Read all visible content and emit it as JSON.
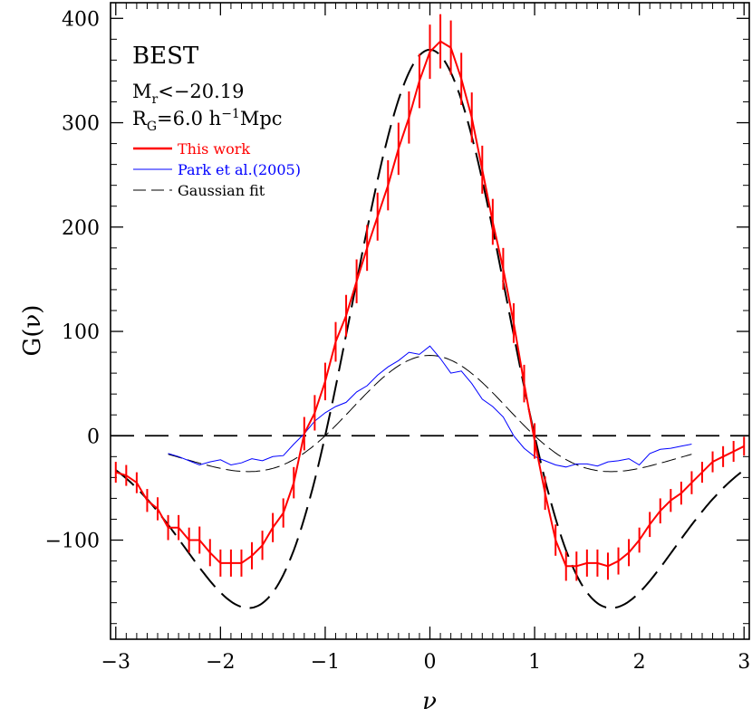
{
  "chart_data": {
    "type": "line",
    "title": "",
    "xlabel": "ν",
    "ylabel": "G(ν)",
    "xlim": [
      -3.05,
      3.05
    ],
    "ylim": [
      -195,
      415
    ],
    "x_ticks": [
      -3,
      -2,
      -1,
      0,
      1,
      2,
      3
    ],
    "x_tick_labels": [
      "−3",
      "−2",
      "−1",
      "0",
      "1",
      "2",
      "3"
    ],
    "y_ticks": [
      -100,
      0,
      100,
      200,
      300,
      400
    ],
    "y_tick_labels": [
      "−100",
      "0",
      "100",
      "200",
      "300",
      "400"
    ],
    "annotations": {
      "sample": "BEST",
      "mag_M": "M",
      "mag_sub": "r",
      "mag_rest": "<−20.19",
      "rg_R": "R",
      "rg_sub": "G",
      "rg_rest": "=6.0 h",
      "rg_sup": "−1",
      "rg_unit": "Mpc"
    },
    "legend": {
      "position": "top-left",
      "entries": [
        {
          "label": "This work",
          "color": "#ff0000",
          "style": "solid-thick"
        },
        {
          "label": "Park et al.(2005)",
          "color": "#0000ff",
          "style": "solid-thin"
        },
        {
          "label": "Gaussian fit",
          "color": "#000000",
          "style": "dashed-thin"
        }
      ]
    },
    "zero_line": {
      "y": 0,
      "style": "long-dash"
    },
    "series": [
      {
        "name": "This work",
        "color": "#ff0000",
        "x": [
          -3.0,
          -2.9,
          -2.8,
          -2.7,
          -2.6,
          -2.5,
          -2.4,
          -2.3,
          -2.2,
          -2.1,
          -2.0,
          -1.9,
          -1.8,
          -1.7,
          -1.6,
          -1.5,
          -1.4,
          -1.3,
          -1.2,
          -1.1,
          -1.0,
          -0.9,
          -0.8,
          -0.7,
          -0.6,
          -0.5,
          -0.4,
          -0.3,
          -0.2,
          -0.1,
          0.0,
          0.1,
          0.2,
          0.3,
          0.4,
          0.5,
          0.6,
          0.7,
          0.8,
          0.9,
          1.0,
          1.1,
          1.2,
          1.3,
          1.4,
          1.5,
          1.6,
          1.7,
          1.8,
          1.9,
          2.0,
          2.1,
          2.2,
          2.3,
          2.4,
          2.5,
          2.6,
          2.7,
          2.8,
          2.9,
          3.0
        ],
        "y": [
          -35,
          -38,
          -45,
          -62,
          -70,
          -88,
          -88,
          -100,
          -100,
          -112,
          -122,
          -122,
          -122,
          -115,
          -105,
          -88,
          -74,
          -45,
          2,
          22,
          52,
          90,
          115,
          148,
          180,
          210,
          240,
          275,
          305,
          340,
          368,
          378,
          372,
          342,
          305,
          255,
          205,
          160,
          108,
          50,
          -5,
          -55,
          -100,
          -125,
          -125,
          -122,
          -122,
          -125,
          -120,
          -112,
          -100,
          -85,
          -72,
          -62,
          -55,
          -45,
          -35,
          -25,
          -20,
          -15,
          -10
        ],
        "err": [
          10,
          10,
          10,
          11,
          11,
          12,
          12,
          12,
          13,
          13,
          13,
          13,
          13,
          13,
          14,
          14,
          14,
          15,
          16,
          17,
          18,
          19,
          20,
          21,
          22,
          23,
          24,
          25,
          25,
          26,
          26,
          26,
          26,
          25,
          24,
          23,
          22,
          20,
          19,
          18,
          17,
          16,
          15,
          14,
          14,
          13,
          13,
          13,
          13,
          13,
          12,
          12,
          12,
          11,
          11,
          11,
          10,
          10,
          10,
          10,
          9
        ]
      },
      {
        "name": "Park et al.(2005)",
        "color": "#0000ff",
        "x": [
          -2.5,
          -2.4,
          -2.3,
          -2.2,
          -2.1,
          -2.0,
          -1.9,
          -1.8,
          -1.7,
          -1.6,
          -1.5,
          -1.4,
          -1.3,
          -1.2,
          -1.1,
          -1.0,
          -0.9,
          -0.8,
          -0.7,
          -0.6,
          -0.5,
          -0.4,
          -0.3,
          -0.2,
          -0.1,
          0.0,
          0.1,
          0.2,
          0.3,
          0.4,
          0.5,
          0.6,
          0.7,
          0.8,
          0.9,
          1.0,
          1.1,
          1.2,
          1.3,
          1.4,
          1.5,
          1.6,
          1.7,
          1.8,
          1.9,
          2.0,
          2.1,
          2.2,
          2.3,
          2.4,
          2.5
        ],
        "y": [
          -17,
          -20,
          -24,
          -28,
          -25,
          -23,
          -28,
          -26,
          -22,
          -24,
          -20,
          -19,
          -8,
          2,
          14,
          22,
          28,
          32,
          42,
          48,
          58,
          66,
          72,
          80,
          78,
          86,
          74,
          60,
          62,
          50,
          35,
          28,
          18,
          0,
          -12,
          -20,
          -24,
          -28,
          -30,
          -27,
          -27,
          -29,
          -25,
          -24,
          -22,
          -28,
          -17,
          -13,
          -12,
          -10,
          -8
        ]
      },
      {
        "name": "Gaussian fit",
        "color": "#000000",
        "amplitude": 77,
        "x_range": [
          -2.5,
          2.5
        ]
      },
      {
        "name": "Gaussian fit",
        "color": "#000000",
        "amplitude": 370,
        "x_range": [
          -3.0,
          3.0
        ]
      }
    ]
  }
}
